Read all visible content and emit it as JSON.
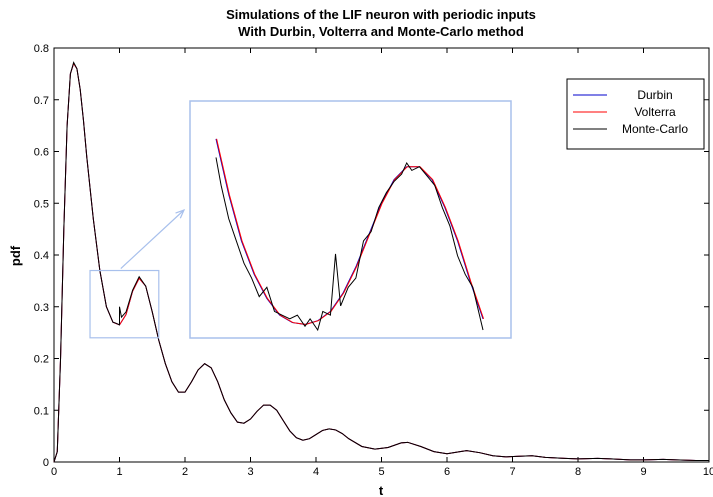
{
  "chart_data": {
    "type": "line",
    "title": [
      "Simulations of the LIF neuron with periodic inputs",
      "With Durbin, Volterra and Monte-Carlo method"
    ],
    "xlabel": "t",
    "ylabel": "pdf",
    "xlim": [
      0,
      10
    ],
    "ylim": [
      0,
      0.8
    ],
    "xticks": [
      "0",
      "1",
      "2",
      "3",
      "4",
      "5",
      "6",
      "7",
      "8",
      "9",
      "10"
    ],
    "yticks": [
      "0",
      "0.1",
      "0.2",
      "0.3",
      "0.4",
      "0.5",
      "0.6",
      "0.7",
      "0.8"
    ],
    "grid": false,
    "legend_position": "top-right",
    "series": [
      {
        "name": "Durbin",
        "color": "#0000cc",
        "x": [
          0,
          0.05,
          0.1,
          0.15,
          0.2,
          0.25,
          0.3,
          0.35,
          0.4,
          0.45,
          0.5,
          0.6,
          0.7,
          0.8,
          0.9,
          1.0,
          1.1,
          1.2,
          1.3,
          1.4,
          1.5,
          1.6,
          1.7,
          1.8,
          1.9,
          2.0,
          2.1,
          2.2,
          2.3,
          2.4,
          2.5,
          2.6,
          2.7,
          2.8,
          2.9,
          3.0,
          3.1,
          3.2,
          3.3,
          3.4,
          3.5,
          3.6,
          3.7,
          3.8,
          3.9,
          4.0,
          4.1,
          4.2,
          4.3,
          4.4,
          4.5,
          4.7,
          4.9,
          5.1,
          5.3,
          5.4,
          5.6,
          5.8,
          6.0,
          6.2,
          6.3,
          6.5,
          6.7,
          6.9,
          7.1,
          7.3,
          7.5,
          7.8,
          8.0,
          8.3,
          8.5,
          8.8,
          9.0,
          9.3,
          9.5,
          9.8,
          10.0
        ],
        "y": [
          0,
          0.02,
          0.2,
          0.45,
          0.65,
          0.75,
          0.77,
          0.76,
          0.72,
          0.66,
          0.59,
          0.47,
          0.37,
          0.3,
          0.27,
          0.265,
          0.285,
          0.33,
          0.355,
          0.34,
          0.29,
          0.235,
          0.19,
          0.155,
          0.135,
          0.135,
          0.155,
          0.178,
          0.19,
          0.182,
          0.155,
          0.12,
          0.095,
          0.077,
          0.075,
          0.083,
          0.098,
          0.11,
          0.11,
          0.1,
          0.08,
          0.06,
          0.047,
          0.042,
          0.045,
          0.053,
          0.061,
          0.064,
          0.062,
          0.055,
          0.045,
          0.03,
          0.025,
          0.028,
          0.037,
          0.038,
          0.03,
          0.02,
          0.016,
          0.02,
          0.022,
          0.018,
          0.012,
          0.01,
          0.011,
          0.012,
          0.009,
          0.007,
          0.006,
          0.007,
          0.006,
          0.004,
          0.004,
          0.005,
          0.004,
          0.003,
          0.003
        ]
      },
      {
        "name": "Volterra",
        "color": "#ff0000",
        "x": [
          0,
          0.05,
          0.1,
          0.15,
          0.2,
          0.25,
          0.3,
          0.35,
          0.4,
          0.45,
          0.5,
          0.6,
          0.7,
          0.8,
          0.9,
          1.0,
          1.1,
          1.2,
          1.3,
          1.4,
          1.5,
          1.6,
          1.7,
          1.8,
          1.9,
          2.0,
          2.1,
          2.2,
          2.3,
          2.4,
          2.5,
          2.6,
          2.7,
          2.8,
          2.9,
          3.0,
          3.1,
          3.2,
          3.3,
          3.4,
          3.5,
          3.6,
          3.7,
          3.8,
          3.9,
          4.0,
          4.1,
          4.2,
          4.3,
          4.4,
          4.5,
          4.7,
          4.9,
          5.1,
          5.3,
          5.4,
          5.6,
          5.8,
          6.0,
          6.2,
          6.3,
          6.5,
          6.7,
          6.9,
          7.1,
          7.3,
          7.5,
          7.8,
          8.0,
          8.3,
          8.5,
          8.8,
          9.0,
          9.3,
          9.5,
          9.8,
          10.0
        ],
        "y": [
          0,
          0.02,
          0.2,
          0.45,
          0.65,
          0.75,
          0.77,
          0.76,
          0.72,
          0.66,
          0.59,
          0.47,
          0.37,
          0.3,
          0.27,
          0.265,
          0.285,
          0.33,
          0.355,
          0.34,
          0.29,
          0.235,
          0.19,
          0.155,
          0.135,
          0.135,
          0.155,
          0.178,
          0.19,
          0.182,
          0.155,
          0.12,
          0.095,
          0.077,
          0.075,
          0.083,
          0.098,
          0.11,
          0.11,
          0.1,
          0.08,
          0.06,
          0.047,
          0.042,
          0.045,
          0.053,
          0.061,
          0.064,
          0.062,
          0.055,
          0.045,
          0.03,
          0.025,
          0.028,
          0.037,
          0.038,
          0.03,
          0.02,
          0.016,
          0.02,
          0.022,
          0.018,
          0.012,
          0.01,
          0.011,
          0.012,
          0.009,
          0.007,
          0.006,
          0.007,
          0.006,
          0.004,
          0.004,
          0.005,
          0.004,
          0.003,
          0.003
        ]
      },
      {
        "name": "Monte-Carlo",
        "color": "#000000",
        "x": [
          0,
          0.05,
          0.1,
          0.15,
          0.2,
          0.25,
          0.3,
          0.35,
          0.4,
          0.45,
          0.5,
          0.6,
          0.7,
          0.8,
          0.9,
          0.95,
          1.0,
          1.0,
          1.03,
          1.1,
          1.2,
          1.3,
          1.4,
          1.5,
          1.6,
          1.7,
          1.8,
          1.9,
          2.0,
          2.1,
          2.2,
          2.3,
          2.4,
          2.5,
          2.6,
          2.7,
          2.8,
          2.9,
          3.0,
          3.1,
          3.2,
          3.3,
          3.4,
          3.5,
          3.6,
          3.7,
          3.8,
          3.9,
          4.0,
          4.1,
          4.2,
          4.3,
          4.4,
          4.5,
          4.7,
          4.9,
          5.1,
          5.3,
          5.4,
          5.6,
          5.8,
          6.0,
          6.2,
          6.3,
          6.5,
          6.7,
          6.9,
          7.1,
          7.3,
          7.5,
          7.8,
          8.0,
          8.3,
          8.5,
          8.8,
          9.0,
          9.3,
          9.5,
          9.8,
          10.0
        ],
        "y": [
          0,
          0.02,
          0.2,
          0.45,
          0.65,
          0.75,
          0.772,
          0.76,
          0.72,
          0.66,
          0.59,
          0.47,
          0.37,
          0.3,
          0.27,
          0.268,
          0.265,
          0.3,
          0.28,
          0.29,
          0.332,
          0.358,
          0.34,
          0.29,
          0.235,
          0.19,
          0.155,
          0.135,
          0.135,
          0.155,
          0.178,
          0.19,
          0.182,
          0.155,
          0.12,
          0.095,
          0.077,
          0.075,
          0.083,
          0.098,
          0.11,
          0.11,
          0.1,
          0.08,
          0.06,
          0.047,
          0.042,
          0.045,
          0.053,
          0.061,
          0.064,
          0.062,
          0.055,
          0.045,
          0.03,
          0.025,
          0.028,
          0.037,
          0.038,
          0.03,
          0.02,
          0.016,
          0.02,
          0.022,
          0.018,
          0.012,
          0.01,
          0.011,
          0.012,
          0.009,
          0.007,
          0.006,
          0.007,
          0.006,
          0.004,
          0.004,
          0.005,
          0.004,
          0.003,
          0.003
        ]
      }
    ],
    "inset": {
      "source_region": {
        "x": [
          0.55,
          1.6
        ],
        "y": [
          0.24,
          0.37
        ]
      },
      "smooth_x": [
        0.55,
        0.6,
        0.65,
        0.7,
        0.75,
        0.8,
        0.85,
        0.9,
        0.95,
        1.0,
        1.05,
        1.1,
        1.15,
        1.2,
        1.25,
        1.3,
        1.35,
        1.4,
        1.45,
        1.5,
        1.55,
        1.6
      ],
      "smooth_y": [
        0.365,
        0.335,
        0.31,
        0.292,
        0.279,
        0.27,
        0.266,
        0.265,
        0.267,
        0.272,
        0.282,
        0.296,
        0.313,
        0.33,
        0.343,
        0.35,
        0.35,
        0.343,
        0.328,
        0.31,
        0.288,
        0.268
      ],
      "mc_x": [
        0.55,
        0.57,
        0.6,
        0.63,
        0.66,
        0.69,
        0.72,
        0.75,
        0.78,
        0.81,
        0.84,
        0.87,
        0.9,
        0.92,
        0.95,
        0.97,
        1.0,
        1.02,
        1.04,
        1.07,
        1.1,
        1.13,
        1.16,
        1.19,
        1.22,
        1.25,
        1.28,
        1.3,
        1.32,
        1.35,
        1.38,
        1.41,
        1.44,
        1.47,
        1.5,
        1.53,
        1.56,
        1.6
      ],
      "mc_y": [
        0.355,
        0.34,
        0.322,
        0.31,
        0.298,
        0.29,
        0.28,
        0.285,
        0.272,
        0.27,
        0.268,
        0.27,
        0.264,
        0.268,
        0.262,
        0.272,
        0.27,
        0.303,
        0.275,
        0.285,
        0.29,
        0.31,
        0.315,
        0.328,
        0.336,
        0.342,
        0.346,
        0.352,
        0.348,
        0.35,
        0.345,
        0.34,
        0.328,
        0.318,
        0.302,
        0.292,
        0.285,
        0.262
      ]
    }
  }
}
